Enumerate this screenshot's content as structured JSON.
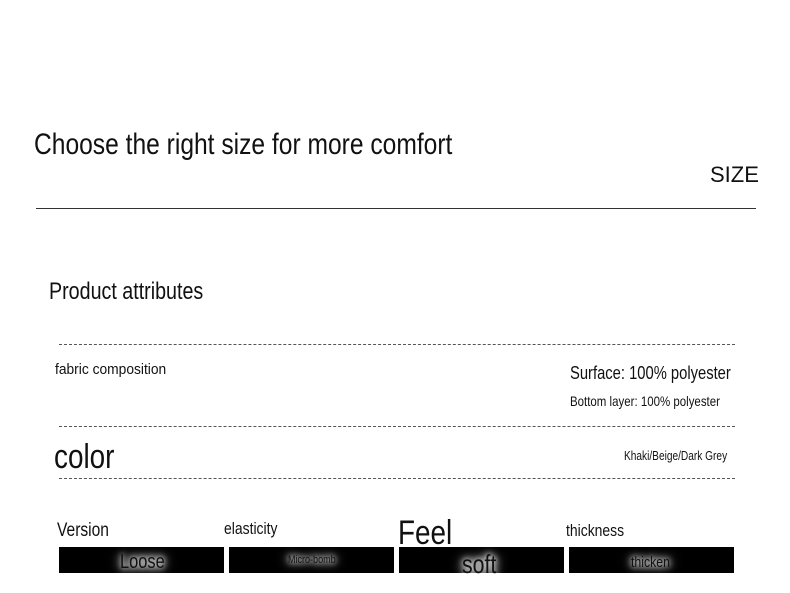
{
  "header": {
    "title": "Choose the right size for more comfort",
    "tag": "SIZE"
  },
  "section_title": "Product attributes",
  "fabric": {
    "label": "fabric composition",
    "values": [
      "Surface: 100% polyester",
      "Bottom layer: 100% polyester"
    ]
  },
  "color": {
    "label": "color",
    "value": "Khaki/Beige/Dark Grey"
  },
  "attributes": [
    {
      "name": "Version",
      "value": "Loose"
    },
    {
      "name": "elasticity",
      "value": "Micro-bomb"
    },
    {
      "name": "Feel",
      "value": "soft"
    },
    {
      "name": "thickness",
      "value": "thicken"
    }
  ]
}
